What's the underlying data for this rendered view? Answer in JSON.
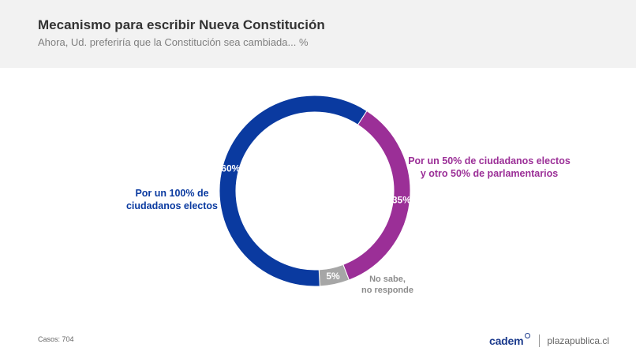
{
  "header": {
    "title": "Mecanismo para escribir Nueva Constitución",
    "subtitle": "Ahora, Ud. preferiría que la Constitución sea cambiada... %"
  },
  "chart_data": {
    "type": "pie",
    "donut": true,
    "slices": [
      {
        "key": "elected50",
        "value": 35,
        "label": "35%",
        "name_lines": [
          "Por un 50% de ciudadanos electos",
          "y otro 50% de parlamentarios"
        ],
        "color": "#9b2f97",
        "name_color": "#9b2f97"
      },
      {
        "key": "nosabe",
        "value": 5,
        "label": "5%",
        "name_lines": [
          "No sabe,",
          "no responde"
        ],
        "color": "#a6a6a6",
        "name_color": "#8c8c8c"
      },
      {
        "key": "elected100",
        "value": 60,
        "label": "60%",
        "name_lines": [
          "Por un 100% de",
          "ciudadanos electos"
        ],
        "color": "#0a3aa0",
        "name_color": "#0a3aa0"
      }
    ]
  },
  "footer": {
    "cases": "Casos: 704",
    "brand": "cadem",
    "site": "plazapublica.cl"
  }
}
